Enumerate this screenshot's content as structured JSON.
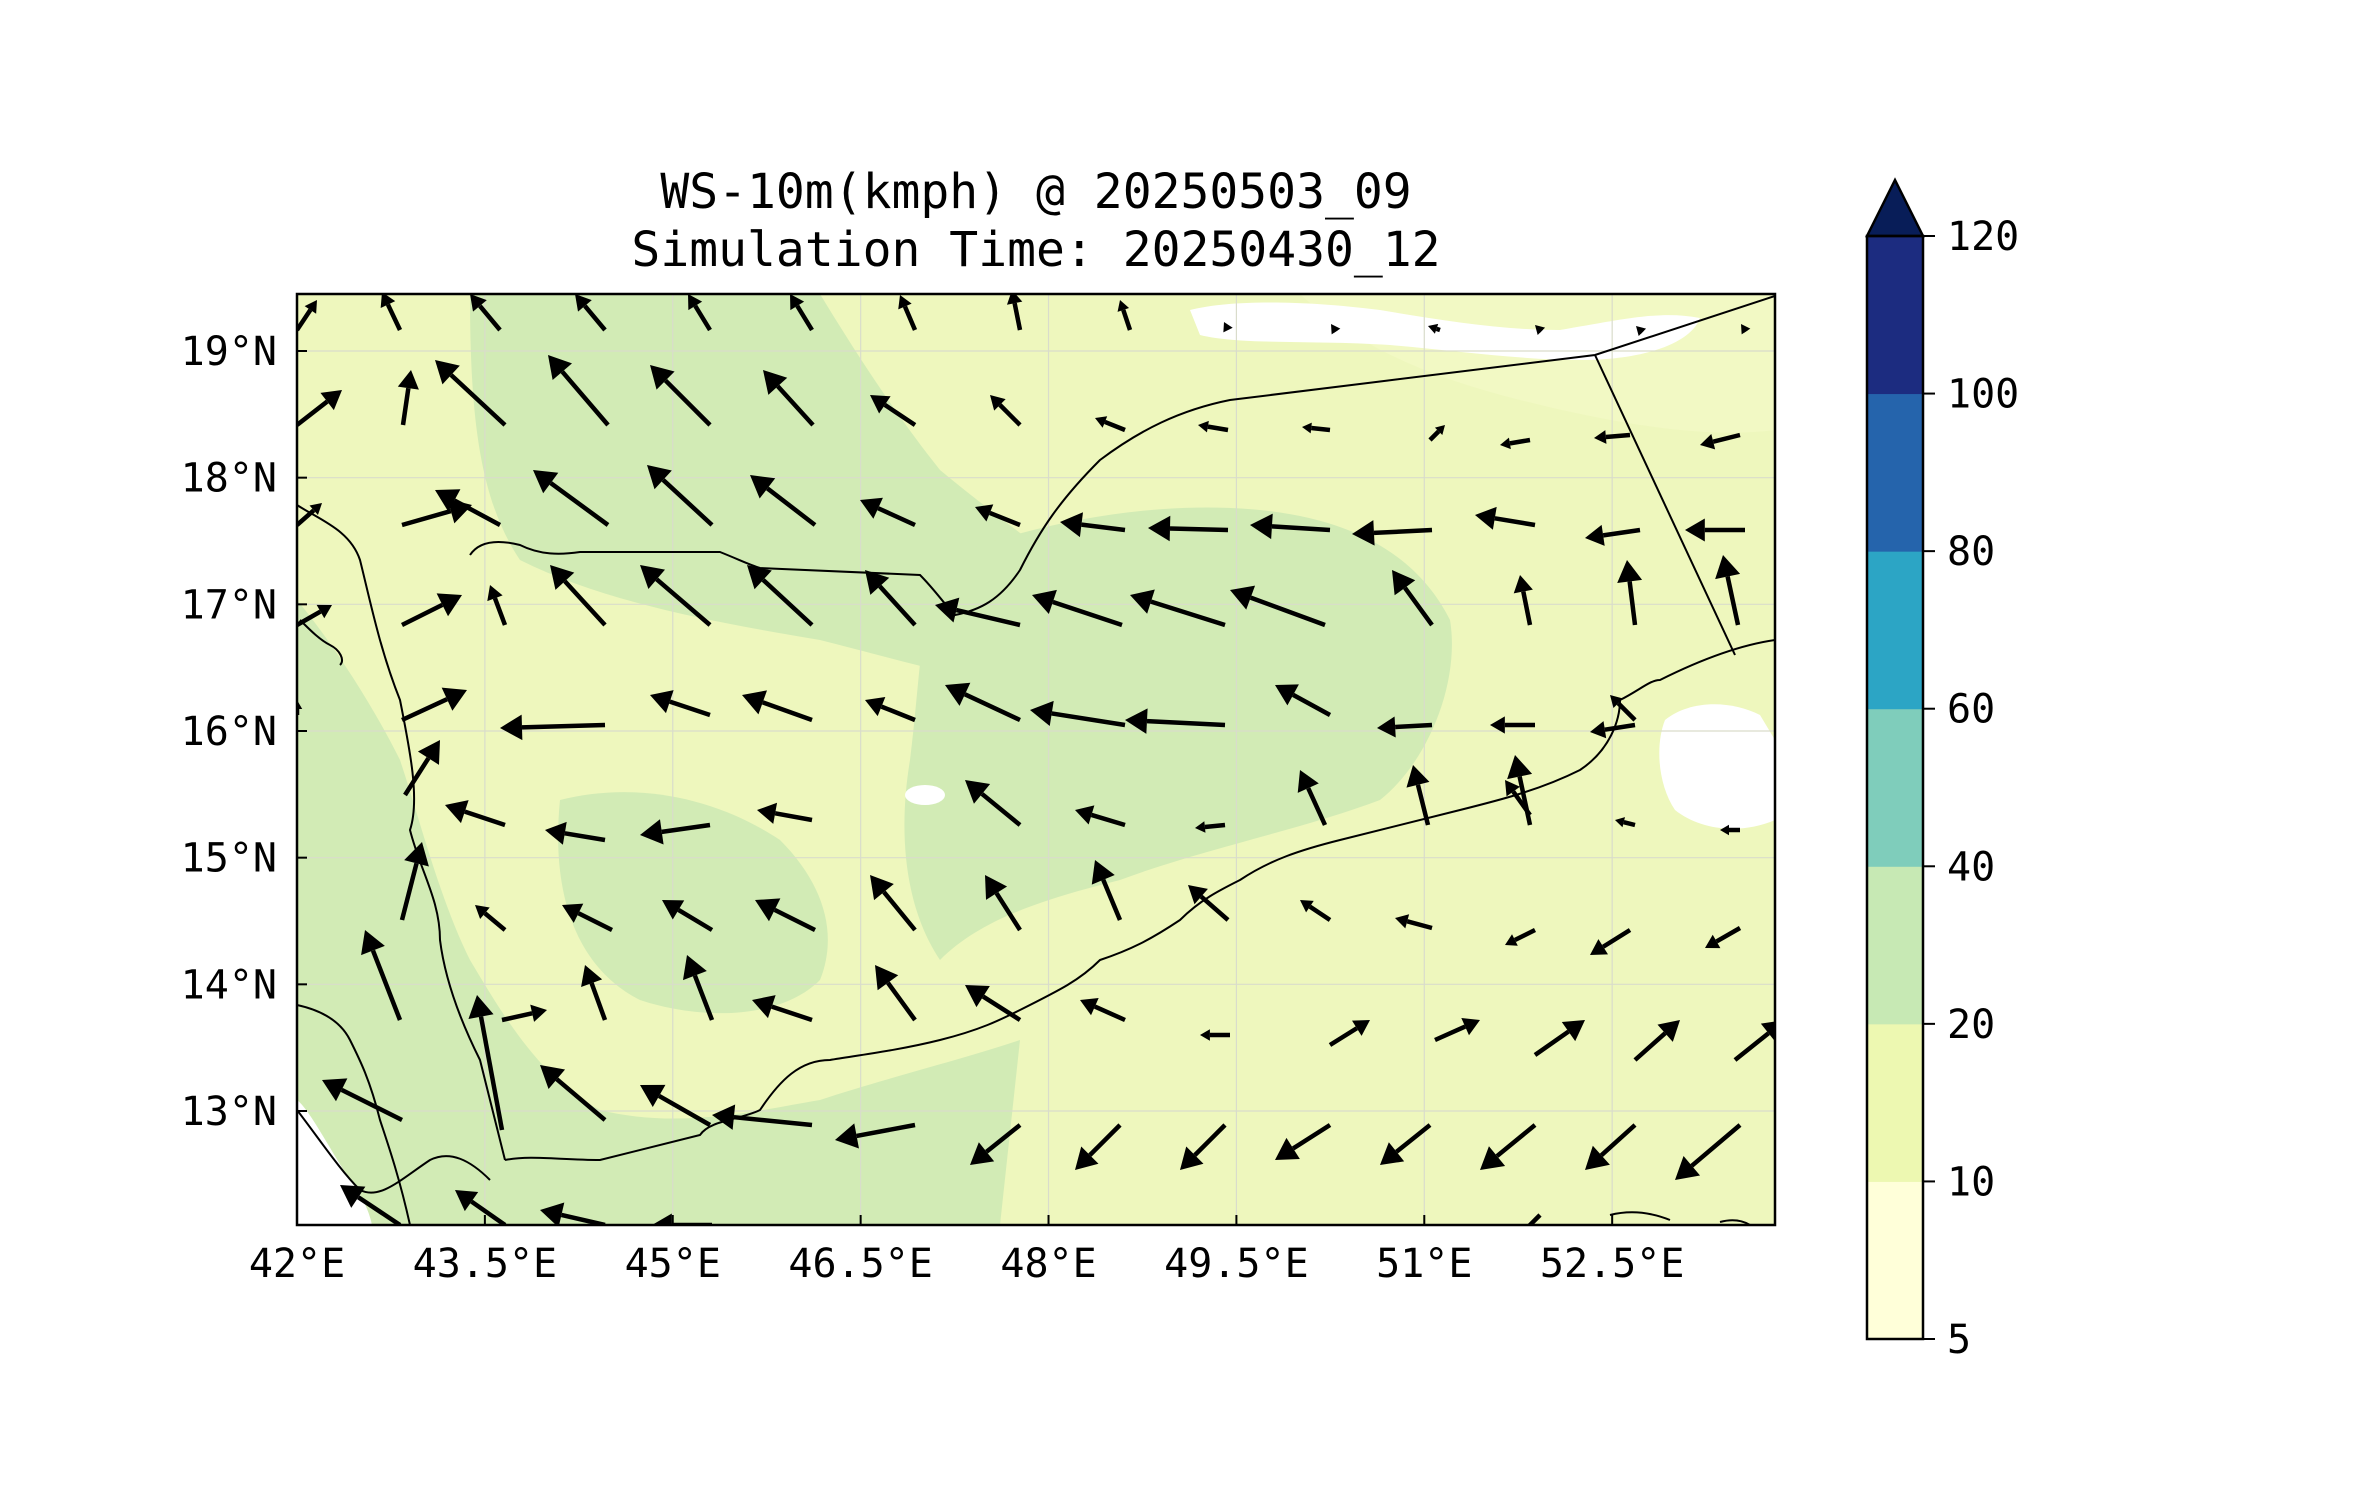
{
  "title": "WS-10m(kmph) @ 20250503_09",
  "subtitle": "Simulation Time: 20250430_12",
  "map": {
    "lon_range": [
      42.0,
      53.8
    ],
    "lat_range": [
      12.1,
      19.45
    ],
    "x_ticks": [
      "42°E",
      "43.5°E",
      "45°E",
      "46.5°E",
      "48°E",
      "49.5°E",
      "51°E",
      "52.5°E"
    ],
    "y_ticks": [
      "19°N",
      "18°N",
      "17°N",
      "16°N",
      "15°N",
      "14°N",
      "13°N"
    ],
    "grid": true
  },
  "colorbar": {
    "levels": [
      "5",
      "10",
      "20",
      "40",
      "60",
      "80",
      "100",
      "120"
    ],
    "colors": [
      "#ffffd9",
      "#edf8b1",
      "#c7e9b4",
      "#7fcdbb",
      "#2ca5c5",
      "#2564ac",
      "#1c2c80",
      "#081d58"
    ],
    "extend": "max"
  },
  "colors": {
    "land_pale": "#f2f9c4",
    "land_light": "#ecf7b8",
    "land_green": "#d2ebb5",
    "sea": "#eef7bd",
    "low_wind": "#ffffff",
    "arrow": "#000000",
    "border": "#000000"
  }
}
